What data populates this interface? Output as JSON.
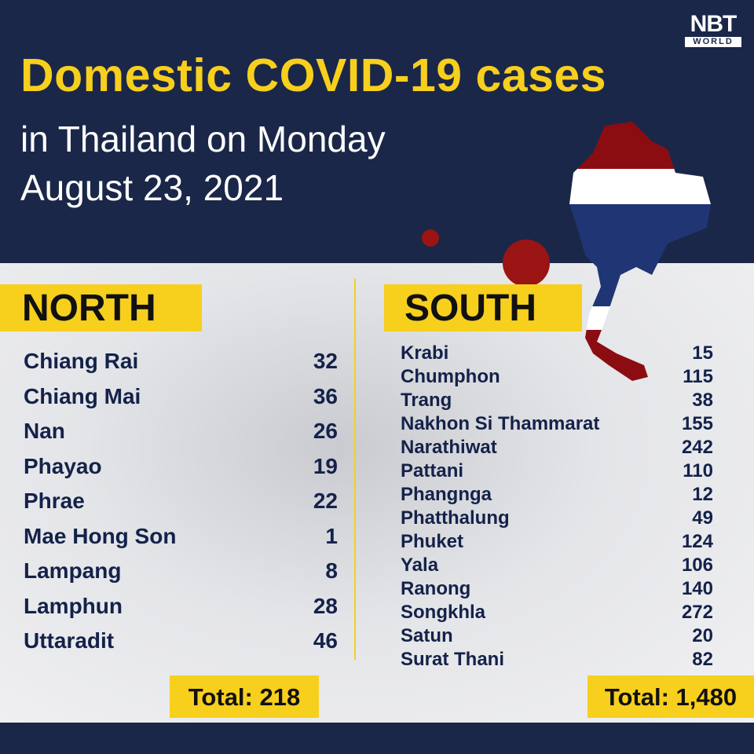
{
  "logo": {
    "name": "NBT",
    "sub": "WORLD"
  },
  "title": "Domestic COVID-19 cases",
  "subtitle_line1": "in Thailand on Monday",
  "subtitle_line2": "August 23, 2021",
  "colors": {
    "navy": "#1b2748",
    "yellow": "#f7cf1d",
    "red": "#8b0d12"
  },
  "north": {
    "heading": "NORTH",
    "total": "Total: 218",
    "rows": [
      {
        "name": "Chiang Rai",
        "value": "32"
      },
      {
        "name": "Chiang Mai",
        "value": "36"
      },
      {
        "name": "Nan",
        "value": "26"
      },
      {
        "name": "Phayao",
        "value": "19"
      },
      {
        "name": "Phrae",
        "value": "22"
      },
      {
        "name": "Mae Hong Son",
        "value": "1"
      },
      {
        "name": "Lampang",
        "value": "8"
      },
      {
        "name": "Lamphun",
        "value": "28"
      },
      {
        "name": "Uttaradit",
        "value": "46"
      }
    ]
  },
  "south": {
    "heading": "SOUTH",
    "total": "Total: 1,480",
    "rows": [
      {
        "name": "Krabi",
        "value": "15"
      },
      {
        "name": "Chumphon",
        "value": "115"
      },
      {
        "name": "Trang",
        "value": "38"
      },
      {
        "name": "Nakhon Si Thammarat",
        "value": "155"
      },
      {
        "name": "Narathiwat",
        "value": "242"
      },
      {
        "name": "Pattani",
        "value": "110"
      },
      {
        "name": "Phangnga",
        "value": "12"
      },
      {
        "name": "Phatthalung",
        "value": "49"
      },
      {
        "name": "Phuket",
        "value": "124"
      },
      {
        "name": "Yala",
        "value": "106"
      },
      {
        "name": "Ranong",
        "value": "140"
      },
      {
        "name": "Songkhla",
        "value": "272"
      },
      {
        "name": "Satun",
        "value": "20"
      },
      {
        "name": "Surat Thani",
        "value": "82"
      }
    ]
  }
}
